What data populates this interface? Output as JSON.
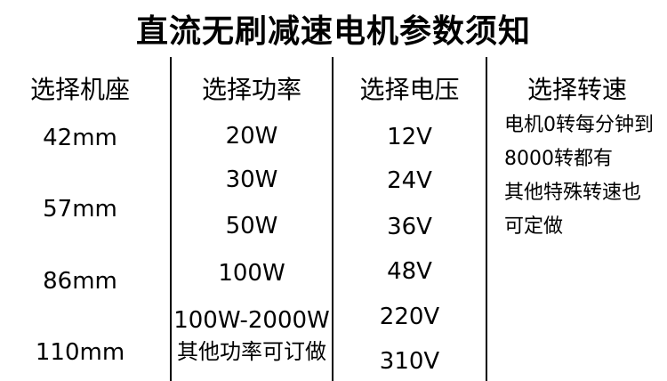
{
  "title": "直流无刷减速电机参数须知",
  "columns": {
    "frame": {
      "header": "选择机座",
      "items": [
        "42mm",
        "57mm",
        "86mm",
        "110mm"
      ]
    },
    "power": {
      "header": "选择功率",
      "items": [
        "20W",
        "30W",
        "50W",
        "100W",
        "100W-2000W",
        "其他功率可订做"
      ]
    },
    "voltage": {
      "header": "选择电压",
      "items": [
        "12V",
        "24V",
        "36V",
        "48V",
        "220V",
        "310V"
      ]
    },
    "speed": {
      "header": "选择转速",
      "lines": [
        "电机0转每分钟到",
        "8000转都有",
        "其他特殊转速也",
        "可定做"
      ]
    }
  },
  "colors": {
    "background": "#ffffff",
    "text": "#000000",
    "divider": "#000000"
  }
}
